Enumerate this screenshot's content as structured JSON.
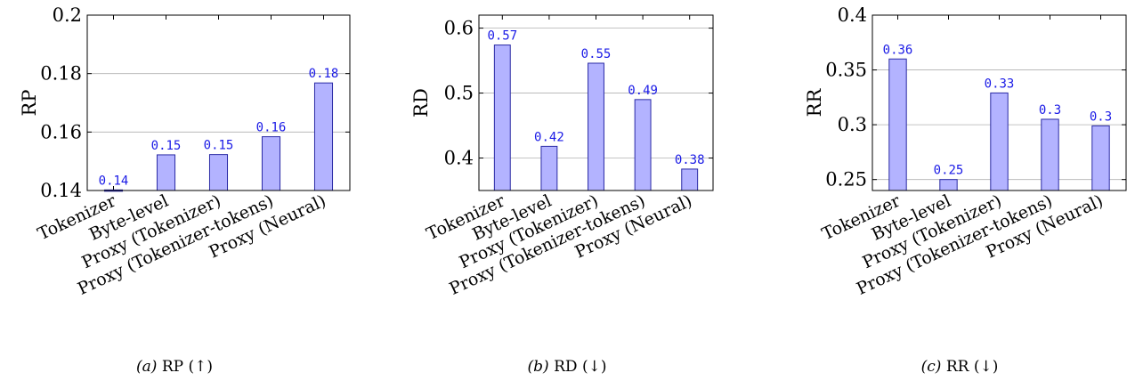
{
  "chart_data": [
    {
      "type": "bar",
      "ylabel": "RP",
      "categories": [
        "Tokenizer",
        "Byte-level",
        "Proxy (Tokenizer)",
        "Proxy (Tokenizer-tokens)",
        "Proxy (Neural)"
      ],
      "values": [
        0.1402,
        0.1522,
        0.1523,
        0.1584,
        0.1768
      ],
      "data_labels": [
        "0.14",
        "0.15",
        "0.15",
        "0.16",
        "0.18"
      ],
      "ylim": [
        0.14,
        0.2
      ],
      "yticks": [
        0.14,
        0.16,
        0.18,
        0.2
      ],
      "ytick_labels": [
        "0.14",
        "0.16",
        "0.18",
        "0.2"
      ],
      "grid": true,
      "caption_letter": "(a)",
      "caption_text": "RP (↑)"
    },
    {
      "type": "bar",
      "ylabel": "RD",
      "categories": [
        "Tokenizer",
        "Byte-level",
        "Proxy (Tokenizer)",
        "Proxy (Tokenizer-tokens)",
        "Proxy (Neural)"
      ],
      "values": [
        0.574,
        0.418,
        0.546,
        0.49,
        0.383
      ],
      "data_labels": [
        "0.57",
        "0.42",
        "0.55",
        "0.49",
        "0.38"
      ],
      "ylim": [
        0.35,
        0.62
      ],
      "yticks": [
        0.4,
        0.5,
        0.6
      ],
      "ytick_labels": [
        "0.4",
        "0.5",
        "0.6"
      ],
      "grid": true,
      "caption_letter": "(b)",
      "caption_text": "RD (↓)"
    },
    {
      "type": "bar",
      "ylabel": "RR",
      "categories": [
        "Tokenizer",
        "Byte-level",
        "Proxy (Tokenizer)",
        "Proxy (Tokenizer-tokens)",
        "Proxy (Neural)"
      ],
      "values": [
        0.36,
        0.25,
        0.329,
        0.305,
        0.299
      ],
      "data_labels": [
        "0.36",
        "0.25",
        "0.33",
        "0.3",
        "0.3"
      ],
      "ylim": [
        0.24,
        0.4
      ],
      "yticks": [
        0.25,
        0.3,
        0.35,
        0.4
      ],
      "ytick_labels": [
        "0.25",
        "0.3",
        "0.35",
        "0.4"
      ],
      "grid": true,
      "caption_letter": "(c)",
      "caption_text": "RR (↓)"
    }
  ]
}
